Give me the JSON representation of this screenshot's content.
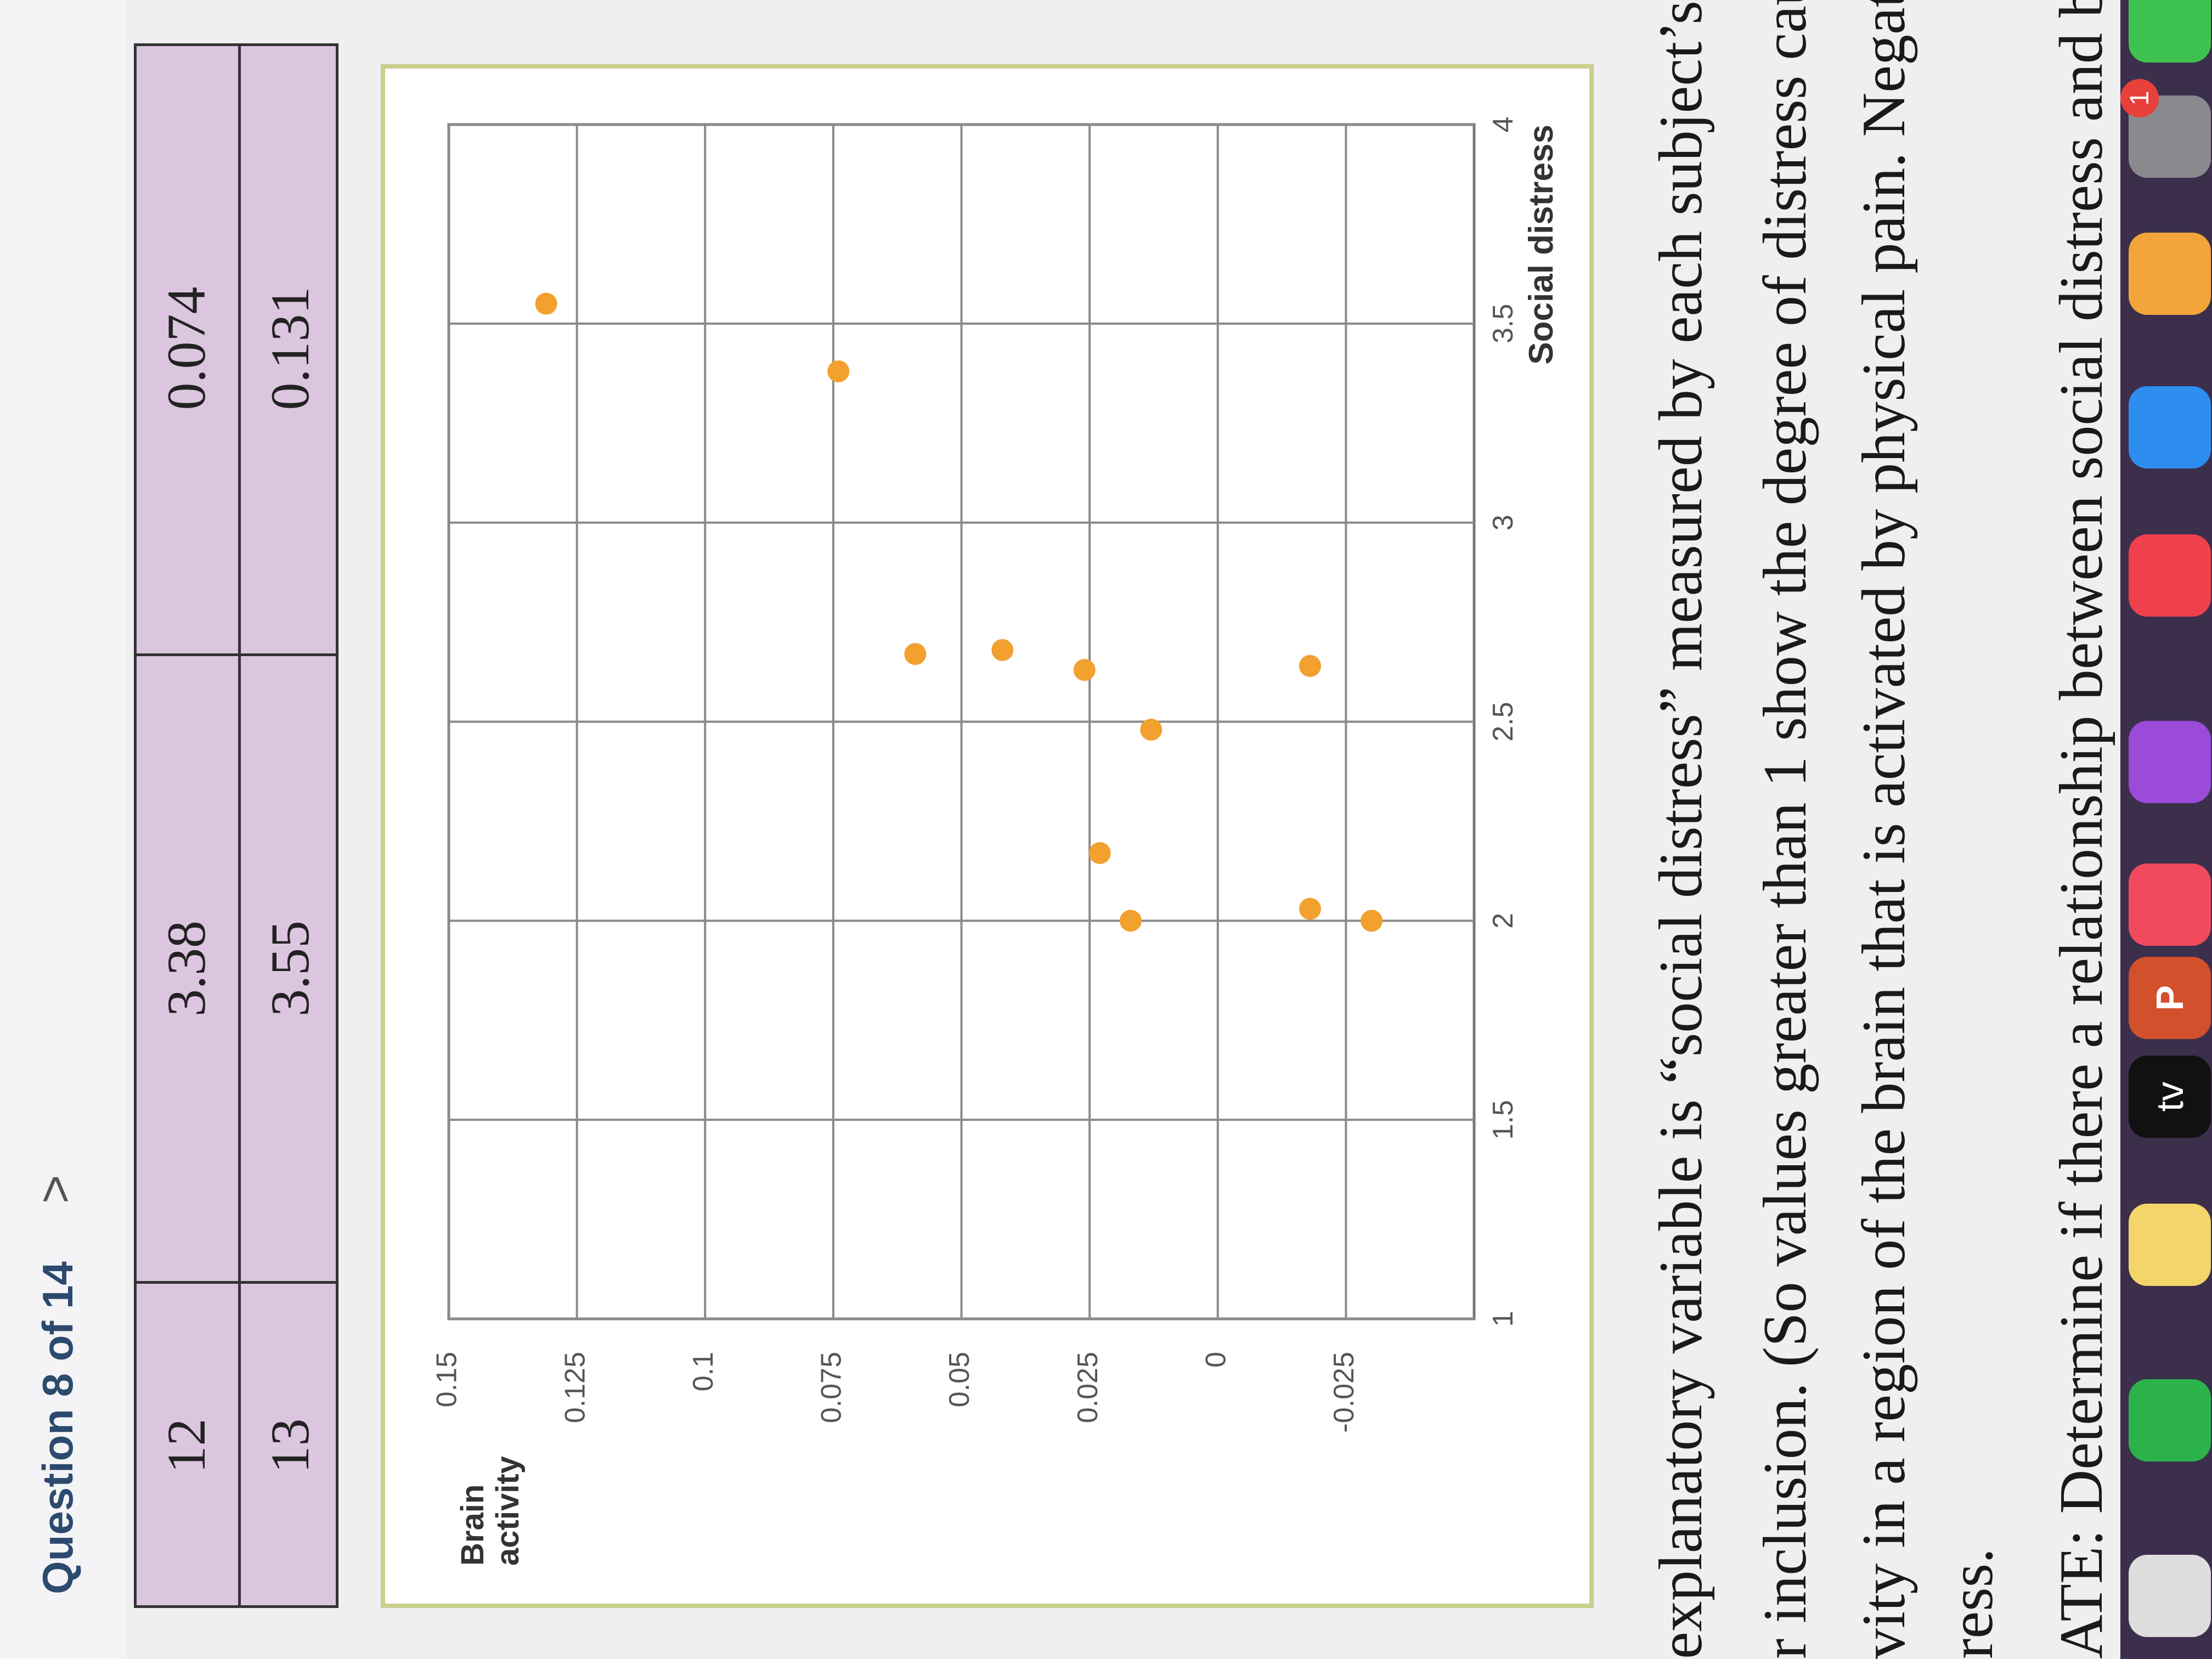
{
  "header": {
    "title": "Question 8 of 14",
    "next": ">"
  },
  "table": {
    "rows": [
      [
        "12",
        "3.38",
        "0.074"
      ],
      [
        "13",
        "3.55",
        "0.131"
      ]
    ]
  },
  "chart_data": {
    "type": "scatter",
    "y_label": "Brain activity",
    "x_label": "Social distress",
    "x": [
      3.55,
      3.38,
      2.67,
      2.68,
      2.63,
      2.48,
      2.17,
      2.0,
      2.03,
      2.0,
      2.64
    ],
    "values": [
      0.131,
      0.074,
      0.059,
      0.042,
      0.026,
      0.013,
      0.023,
      0.017,
      -0.018,
      -0.03,
      -0.018
    ],
    "color": "#f2a02e",
    "xlim": [
      1,
      4
    ],
    "xticks": [
      1,
      1.5,
      2,
      2.5,
      3,
      3.5,
      4
    ],
    "ylim": [
      -0.05,
      0.15
    ],
    "yticks": [
      -0.025,
      0,
      0.025,
      0.05,
      0.075,
      0.1,
      0.125,
      0.15
    ],
    "grid": true
  },
  "passage": {
    "lines": [
      "explanatory variable is “social distress” measured by each subject’s",
      "r inclusion. (So values greater than 1 show the degree of distress cau",
      "vity in a region of the brain that is activated by physical pain. Negati",
      "ress.",
      "ATE: Determine if there a relationship between social distress and bra"
    ]
  },
  "dock": {
    "tv": "tv",
    "powerpoint": "P",
    "badge": "1"
  }
}
